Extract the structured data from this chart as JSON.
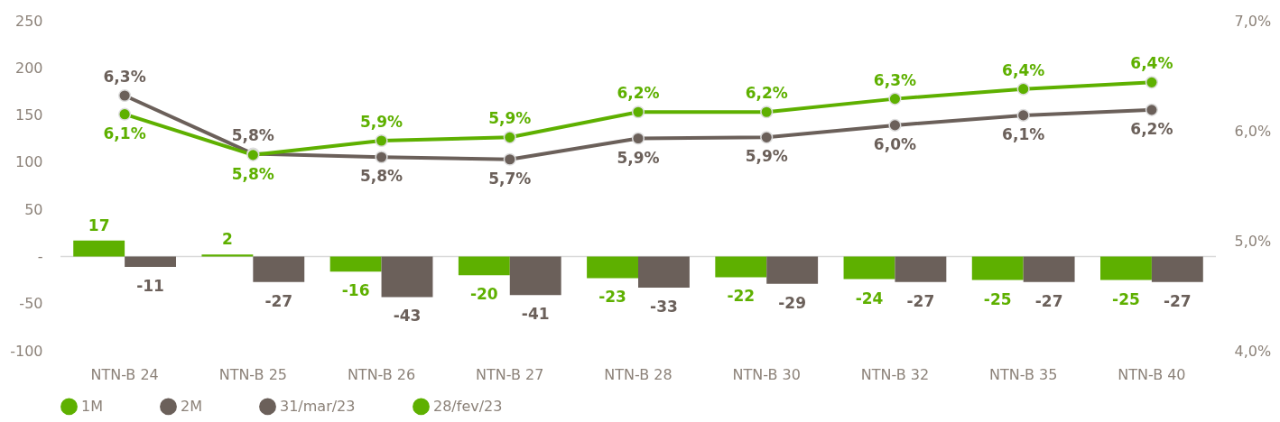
{
  "chart_data": {
    "type": "bar",
    "categories": [
      "NTN-B 24",
      "NTN-B 25",
      "NTN-B 26",
      "NTN-B 27",
      "NTN-B 28",
      "NTN-B 30",
      "NTN-B 32",
      "NTN-B 35",
      "NTN-B 40"
    ],
    "series": [
      {
        "name": "1M",
        "color": "#5eb000",
        "values": [
          17,
          2,
          -16,
          -20,
          -23,
          -22,
          -24,
          -25,
          -25
        ],
        "value_labels": [
          "17",
          "2",
          "-16",
          "-20",
          "-23",
          "-22",
          "-24",
          "-25",
          "-25"
        ]
      },
      {
        "name": "2M",
        "color": "#6b605a",
        "values": [
          -11,
          -27,
          -43,
          -41,
          -33,
          -29,
          -27,
          -27,
          -27
        ],
        "value_labels": [
          "-11",
          "-27",
          "-43",
          "-41",
          "-33",
          "-29",
          "-27",
          "-27",
          "-27"
        ]
      },
      {
        "name": "31/mar/23",
        "type": "line",
        "axis": "y2",
        "color": "#6b605a",
        "values": [
          6.32,
          5.79,
          5.76,
          5.74,
          5.93,
          5.94,
          6.05,
          6.14,
          6.19
        ],
        "value_labels": [
          "6,3%",
          "5,8%",
          "5,8%",
          "5,7%",
          "5,9%",
          "5,9%",
          "6,0%",
          "6,1%",
          "6,2%"
        ]
      },
      {
        "name": "28/fev/23",
        "type": "line",
        "axis": "y2",
        "color": "#5eb000",
        "values": [
          6.15,
          5.78,
          5.91,
          5.94,
          6.17,
          6.17,
          6.29,
          6.38,
          6.44
        ],
        "value_labels": [
          "6,1%",
          "5,8%",
          "5,9%",
          "5,9%",
          "6,2%",
          "6,2%",
          "6,3%",
          "6,4%",
          "6,4%"
        ]
      }
    ],
    "ylim": [
      -100,
      250
    ],
    "yticks": [
      250,
      200,
      150,
      100,
      50,
      {
        "value": 0,
        "label": "-"
      },
      -50,
      -100
    ],
    "y2lim": [
      4,
      7
    ],
    "y2ticks": [
      {
        "value": 7,
        "label": "7,0%"
      },
      {
        "value": 6,
        "label": "6,0%"
      },
      {
        "value": 5,
        "label": "5,0%"
      },
      {
        "value": 4,
        "label": "4,0%"
      }
    ],
    "marker": "circle",
    "legend": "bottom"
  }
}
